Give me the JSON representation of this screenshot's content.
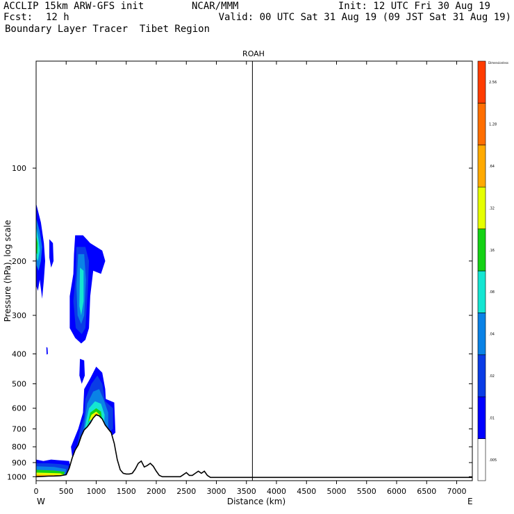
{
  "header": {
    "model": "ACCLIP 15km ARW-GFS init",
    "org": "NCAR/MMM",
    "init": "Init: 12 UTC Fri 30 Aug 19",
    "fcst_label": "Fcst:",
    "fcst_value": "12 h",
    "valid": "Valid: 00 UTC Sat 31 Aug 19 (09 JST Sat 31 Aug 19)",
    "field": "Boundary Layer Tracer  Tibet Region"
  },
  "chart_data": {
    "type": "contour-cross-section",
    "title": "ROAH",
    "xlabel": "Distance (km)",
    "ylabel": "Pressure (hPa), log scale",
    "x_ticks": [
      0,
      500,
      1000,
      1500,
      2000,
      2500,
      3000,
      3500,
      4000,
      4500,
      5000,
      5500,
      6000,
      6500,
      7000
    ],
    "y_ticks": [
      100,
      200,
      300,
      400,
      500,
      600,
      700,
      800,
      900,
      1000
    ],
    "x_range": [
      0,
      7260
    ],
    "y_range": [
      1030,
      45
    ],
    "y_scale": "log",
    "left_end_label": "W",
    "right_end_label": "E",
    "vertical_line_x": 3600,
    "colorbar": {
      "units_label": "Dimensionless",
      "labels": [
        ".005",
        ".01",
        ".02",
        ".04",
        ".08",
        ".16",
        ".32",
        ".64",
        "1.28",
        "2.56"
      ],
      "colors": [
        "#ffffff",
        "#0000ff",
        "#0a3ce6",
        "#0a82e6",
        "#14e6d2",
        "#14d214",
        "#e6ff00",
        "#ffaa00",
        "#ff6e00",
        "#ff3c00"
      ]
    },
    "terrain_profile": [
      [
        0,
        1000
      ],
      [
        100,
        998
      ],
      [
        200,
        996
      ],
      [
        300,
        995
      ],
      [
        400,
        993
      ],
      [
        500,
        985
      ],
      [
        550,
        940
      ],
      [
        600,
        870
      ],
      [
        650,
        820
      ],
      [
        700,
        790
      ],
      [
        750,
        740
      ],
      [
        800,
        705
      ],
      [
        850,
        690
      ],
      [
        900,
        670
      ],
      [
        950,
        645
      ],
      [
        1000,
        630
      ],
      [
        1050,
        635
      ],
      [
        1100,
        650
      ],
      [
        1150,
        680
      ],
      [
        1200,
        700
      ],
      [
        1250,
        720
      ],
      [
        1300,
        780
      ],
      [
        1350,
        880
      ],
      [
        1400,
        950
      ],
      [
        1450,
        975
      ],
      [
        1500,
        980
      ],
      [
        1550,
        980
      ],
      [
        1600,
        975
      ],
      [
        1650,
        945
      ],
      [
        1700,
        905
      ],
      [
        1750,
        890
      ],
      [
        1800,
        930
      ],
      [
        1850,
        920
      ],
      [
        1900,
        905
      ],
      [
        1950,
        925
      ],
      [
        2000,
        960
      ],
      [
        2050,
        990
      ],
      [
        2100,
        1000
      ],
      [
        2200,
        1000
      ],
      [
        2300,
        1000
      ],
      [
        2400,
        1000
      ],
      [
        2450,
        985
      ],
      [
        2500,
        970
      ],
      [
        2550,
        990
      ],
      [
        2600,
        990
      ],
      [
        2650,
        975
      ],
      [
        2700,
        960
      ],
      [
        2750,
        975
      ],
      [
        2800,
        960
      ],
      [
        2850,
        990
      ],
      [
        2900,
        1005
      ],
      [
        3600,
        1005
      ],
      [
        4000,
        1005
      ],
      [
        5000,
        1005
      ],
      [
        6000,
        1005
      ],
      [
        7260,
        1005
      ]
    ]
  }
}
